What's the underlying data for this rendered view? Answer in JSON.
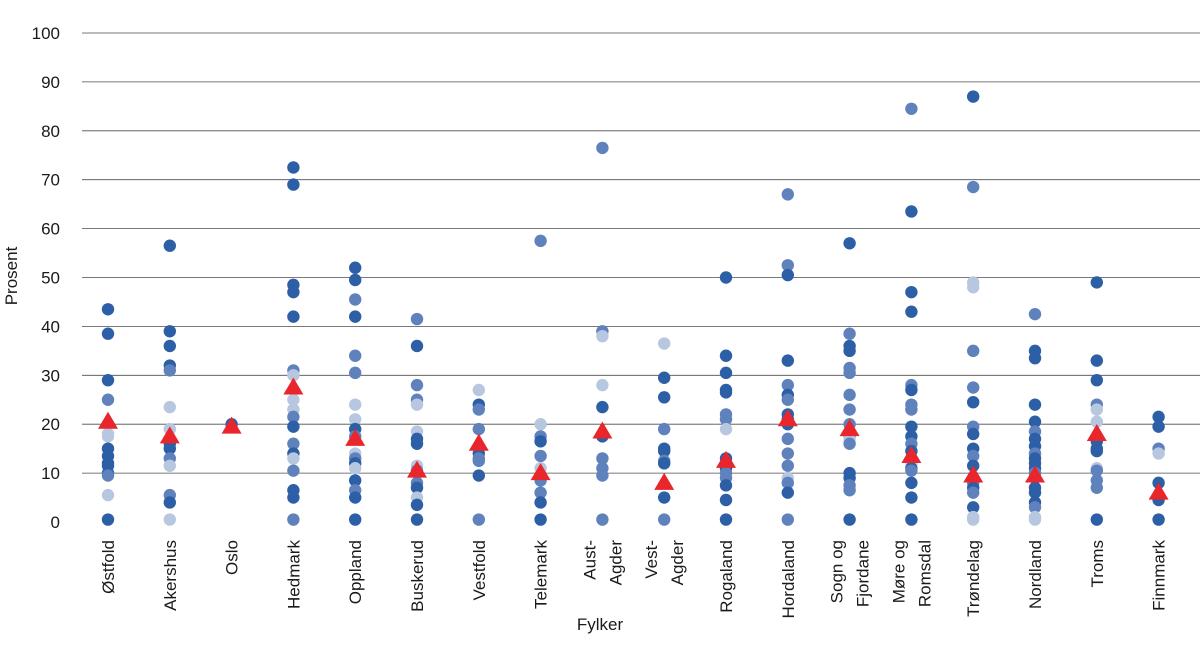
{
  "chart_data": {
    "type": "scatter",
    "title": "",
    "xlabel": "Fylker",
    "ylabel": "Prosent",
    "ylim": [
      0,
      100
    ],
    "yticks": [
      0,
      10,
      20,
      30,
      40,
      50,
      60,
      70,
      80,
      90,
      100
    ],
    "grid": true,
    "colors": {
      "dark": "#2d5fa6",
      "medium": "#5f82bd",
      "light": "#b8c7e0",
      "triangle": "#e8262b",
      "grid": "#4d4d4d"
    },
    "categories": [
      {
        "label": [
          "Østfold"
        ],
        "mean": 20.5,
        "points": [
          [
            43.5,
            "d"
          ],
          [
            38.5,
            "d"
          ],
          [
            29,
            "d"
          ],
          [
            25,
            "m"
          ],
          [
            18,
            "l"
          ],
          [
            17.5,
            "l"
          ],
          [
            15,
            "d"
          ],
          [
            13.5,
            "d"
          ],
          [
            12,
            "d"
          ],
          [
            11.5,
            "d"
          ],
          [
            10,
            "d"
          ],
          [
            9.5,
            "m"
          ],
          [
            5.5,
            "l"
          ],
          [
            0.5,
            "d"
          ]
        ]
      },
      {
        "label": [
          "Akershus"
        ],
        "mean": 17.5,
        "points": [
          [
            56.5,
            "d"
          ],
          [
            39,
            "d"
          ],
          [
            36,
            "d"
          ],
          [
            32,
            "d"
          ],
          [
            31,
            "m"
          ],
          [
            23.5,
            "l"
          ],
          [
            19,
            "l"
          ],
          [
            16,
            "d"
          ],
          [
            15,
            "d"
          ],
          [
            13,
            "m"
          ],
          [
            11.5,
            "l"
          ],
          [
            5.5,
            "m"
          ],
          [
            4,
            "d"
          ],
          [
            0.5,
            "l"
          ]
        ]
      },
      {
        "label": [
          "Oslo"
        ],
        "mean": 19.5,
        "points": [
          [
            20,
            "d"
          ]
        ]
      },
      {
        "label": [
          "Hedmark"
        ],
        "mean": 27.5,
        "points": [
          [
            72.5,
            "d"
          ],
          [
            69,
            "d"
          ],
          [
            48.5,
            "d"
          ],
          [
            47,
            "d"
          ],
          [
            42,
            "d"
          ],
          [
            31,
            "m"
          ],
          [
            30,
            "l"
          ],
          [
            25,
            "l"
          ],
          [
            23,
            "l"
          ],
          [
            21.5,
            "m"
          ],
          [
            19.5,
            "d"
          ],
          [
            16,
            "m"
          ],
          [
            14,
            "d"
          ],
          [
            13,
            "l"
          ],
          [
            10.5,
            "m"
          ],
          [
            6.5,
            "d"
          ],
          [
            5,
            "d"
          ],
          [
            0.5,
            "m"
          ]
        ]
      },
      {
        "label": [
          "Oppland"
        ],
        "mean": 17,
        "points": [
          [
            52,
            "d"
          ],
          [
            49.5,
            "d"
          ],
          [
            45.5,
            "m"
          ],
          [
            42,
            "d"
          ],
          [
            34,
            "m"
          ],
          [
            30.5,
            "m"
          ],
          [
            24,
            "l"
          ],
          [
            21,
            "l"
          ],
          [
            19,
            "d"
          ],
          [
            17.5,
            "m"
          ],
          [
            14,
            "l"
          ],
          [
            13,
            "m"
          ],
          [
            12,
            "d"
          ],
          [
            11,
            "l"
          ],
          [
            8.5,
            "d"
          ],
          [
            6.5,
            "m"
          ],
          [
            5,
            "d"
          ],
          [
            0.5,
            "d"
          ]
        ]
      },
      {
        "label": [
          "Buskerud"
        ],
        "mean": 10.5,
        "points": [
          [
            41.5,
            "m"
          ],
          [
            36,
            "d"
          ],
          [
            28,
            "m"
          ],
          [
            25,
            "m"
          ],
          [
            24,
            "l"
          ],
          [
            18.5,
            "l"
          ],
          [
            17,
            "d"
          ],
          [
            16,
            "d"
          ],
          [
            11.5,
            "l"
          ],
          [
            10.5,
            "m"
          ],
          [
            8,
            "m"
          ],
          [
            7,
            "d"
          ],
          [
            5,
            "l"
          ],
          [
            3.5,
            "d"
          ],
          [
            0.5,
            "d"
          ]
        ]
      },
      {
        "label": [
          "Vestfold"
        ],
        "mean": 16,
        "points": [
          [
            27,
            "l"
          ],
          [
            24,
            "d"
          ],
          [
            23,
            "m"
          ],
          [
            19,
            "m"
          ],
          [
            14,
            "d"
          ],
          [
            13,
            "m"
          ],
          [
            12.5,
            "m"
          ],
          [
            9.5,
            "d"
          ],
          [
            0.5,
            "m"
          ]
        ]
      },
      {
        "label": [
          "Telemark"
        ],
        "mean": 10,
        "points": [
          [
            57.5,
            "m"
          ],
          [
            20,
            "l"
          ],
          [
            17.5,
            "m"
          ],
          [
            16.5,
            "d"
          ],
          [
            13.5,
            "m"
          ],
          [
            11,
            "l"
          ],
          [
            8.5,
            "m"
          ],
          [
            6,
            "m"
          ],
          [
            4,
            "d"
          ],
          [
            0.5,
            "d"
          ]
        ]
      },
      {
        "label": [
          "Aust-",
          "Agder"
        ],
        "mean": 18.5,
        "points": [
          [
            76.5,
            "m"
          ],
          [
            39,
            "m"
          ],
          [
            38,
            "l"
          ],
          [
            28,
            "l"
          ],
          [
            23.5,
            "d"
          ],
          [
            17.5,
            "d"
          ],
          [
            13,
            "m"
          ],
          [
            11,
            "m"
          ],
          [
            9.5,
            "m"
          ],
          [
            0.5,
            "m"
          ]
        ]
      },
      {
        "label": [
          "Vest-",
          "Agder"
        ],
        "mean": 8,
        "points": [
          [
            36.5,
            "l"
          ],
          [
            29.5,
            "d"
          ],
          [
            25.5,
            "d"
          ],
          [
            19,
            "m"
          ],
          [
            15,
            "d"
          ],
          [
            14.5,
            "d"
          ],
          [
            12.5,
            "m"
          ],
          [
            12,
            "d"
          ],
          [
            5,
            "d"
          ],
          [
            0.5,
            "m"
          ]
        ]
      },
      {
        "label": [
          "Rogaland"
        ],
        "mean": 12.5,
        "points": [
          [
            50,
            "d"
          ],
          [
            34,
            "d"
          ],
          [
            30.5,
            "d"
          ],
          [
            27,
            "d"
          ],
          [
            26.5,
            "d"
          ],
          [
            22,
            "m"
          ],
          [
            21,
            "m"
          ],
          [
            19,
            "l"
          ],
          [
            13,
            "d"
          ],
          [
            11,
            "d"
          ],
          [
            10,
            "m"
          ],
          [
            9,
            "m"
          ],
          [
            7.5,
            "d"
          ],
          [
            4.5,
            "d"
          ],
          [
            0.5,
            "d"
          ]
        ]
      },
      {
        "label": [
          "Hordaland"
        ],
        "mean": 21,
        "points": [
          [
            67,
            "m"
          ],
          [
            52.5,
            "m"
          ],
          [
            50.5,
            "d"
          ],
          [
            33,
            "d"
          ],
          [
            28,
            "m"
          ],
          [
            26,
            "d"
          ],
          [
            25,
            "m"
          ],
          [
            22,
            "d"
          ],
          [
            21,
            "d"
          ],
          [
            20,
            "d"
          ],
          [
            17,
            "m"
          ],
          [
            14,
            "m"
          ],
          [
            11.5,
            "m"
          ],
          [
            9,
            "l"
          ],
          [
            8,
            "m"
          ],
          [
            6,
            "d"
          ],
          [
            0.5,
            "m"
          ]
        ]
      },
      {
        "label": [
          "Sogn og",
          "Fjordane"
        ],
        "mean": 19,
        "points": [
          [
            57,
            "d"
          ],
          [
            38.5,
            "m"
          ],
          [
            36,
            "d"
          ],
          [
            35,
            "d"
          ],
          [
            31.5,
            "m"
          ],
          [
            30.5,
            "m"
          ],
          [
            26,
            "m"
          ],
          [
            23,
            "m"
          ],
          [
            20,
            "m"
          ],
          [
            17.5,
            "d"
          ],
          [
            17,
            "l"
          ],
          [
            16,
            "m"
          ],
          [
            10,
            "d"
          ],
          [
            9,
            "d"
          ],
          [
            7.5,
            "m"
          ],
          [
            6.5,
            "m"
          ],
          [
            0.5,
            "d"
          ]
        ]
      },
      {
        "label": [
          "Møre og",
          "Romsdal"
        ],
        "mean": 13.5,
        "points": [
          [
            84.5,
            "m"
          ],
          [
            63.5,
            "d"
          ],
          [
            47,
            "d"
          ],
          [
            43,
            "d"
          ],
          [
            28,
            "m"
          ],
          [
            27,
            "d"
          ],
          [
            24,
            "m"
          ],
          [
            23,
            "m"
          ],
          [
            19.5,
            "d"
          ],
          [
            17.5,
            "d"
          ],
          [
            16,
            "m"
          ],
          [
            14.5,
            "d"
          ],
          [
            13,
            "m"
          ],
          [
            12,
            "l"
          ],
          [
            11,
            "d"
          ],
          [
            10.5,
            "m"
          ],
          [
            8,
            "d"
          ],
          [
            5,
            "d"
          ],
          [
            0.5,
            "d"
          ]
        ]
      },
      {
        "label": [
          "Trøndelag"
        ],
        "mean": 9.5,
        "points": [
          [
            87,
            "d"
          ],
          [
            68.5,
            "m"
          ],
          [
            49,
            "l"
          ],
          [
            48,
            "l"
          ],
          [
            35,
            "m"
          ],
          [
            27.5,
            "m"
          ],
          [
            24.5,
            "d"
          ],
          [
            19.5,
            "m"
          ],
          [
            18,
            "d"
          ],
          [
            15,
            "d"
          ],
          [
            13.5,
            "m"
          ],
          [
            11.5,
            "d"
          ],
          [
            9,
            "d"
          ],
          [
            8,
            "m"
          ],
          [
            7,
            "d"
          ],
          [
            6,
            "m"
          ],
          [
            3,
            "d"
          ],
          [
            1,
            "l"
          ],
          [
            0.5,
            "l"
          ]
        ]
      },
      {
        "label": [
          "Nordland"
        ],
        "mean": 9.5,
        "points": [
          [
            42.5,
            "m"
          ],
          [
            35,
            "d"
          ],
          [
            33.5,
            "d"
          ],
          [
            24,
            "d"
          ],
          [
            20.5,
            "d"
          ],
          [
            18.5,
            "m"
          ],
          [
            17,
            "d"
          ],
          [
            15.5,
            "d"
          ],
          [
            14,
            "m"
          ],
          [
            13,
            "d"
          ],
          [
            12,
            "d"
          ],
          [
            11,
            "d"
          ],
          [
            10,
            "m"
          ],
          [
            9,
            "m"
          ],
          [
            7,
            "d"
          ],
          [
            6,
            "d"
          ],
          [
            4,
            "d"
          ],
          [
            3,
            "m"
          ],
          [
            1,
            "l"
          ],
          [
            0.5,
            "l"
          ]
        ]
      },
      {
        "label": [
          "Troms"
        ],
        "mean": 18,
        "points": [
          [
            49,
            "d"
          ],
          [
            33,
            "d"
          ],
          [
            29,
            "d"
          ],
          [
            24,
            "m"
          ],
          [
            23,
            "l"
          ],
          [
            20.5,
            "l"
          ],
          [
            16.5,
            "d"
          ],
          [
            15,
            "d"
          ],
          [
            14.5,
            "d"
          ],
          [
            11,
            "l"
          ],
          [
            10.5,
            "m"
          ],
          [
            8.5,
            "m"
          ],
          [
            7,
            "m"
          ],
          [
            0.5,
            "d"
          ]
        ]
      },
      {
        "label": [
          "Finnmark"
        ],
        "mean": 6,
        "points": [
          [
            21.5,
            "d"
          ],
          [
            19.5,
            "d"
          ],
          [
            15,
            "m"
          ],
          [
            14,
            "l"
          ],
          [
            8,
            "d"
          ],
          [
            5.5,
            "l"
          ],
          [
            4.5,
            "d"
          ],
          [
            0.5,
            "d"
          ]
        ]
      }
    ]
  }
}
